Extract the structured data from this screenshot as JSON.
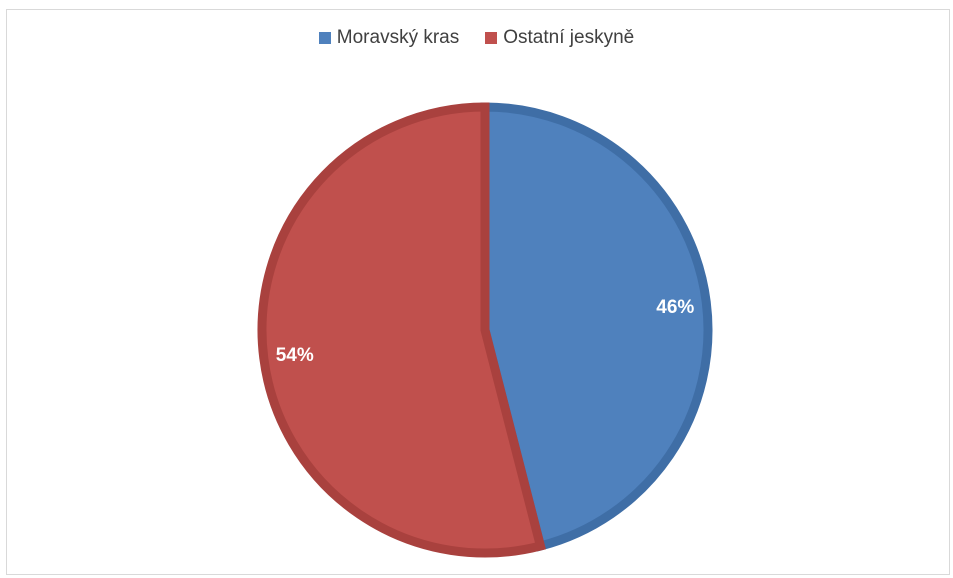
{
  "chart_data": {
    "type": "pie",
    "title": "",
    "categories": [
      "Moravský kras",
      "Ostatní jeskyně"
    ],
    "values": [
      46,
      54
    ],
    "data_labels": [
      "46%",
      "54%"
    ],
    "colors": [
      "#4f81bd",
      "#c0504d"
    ],
    "border_colors": [
      "#3f6ea6",
      "#a9413e"
    ],
    "legend_position": "top",
    "start_angle_deg": 0,
    "direction": "clockwise"
  }
}
